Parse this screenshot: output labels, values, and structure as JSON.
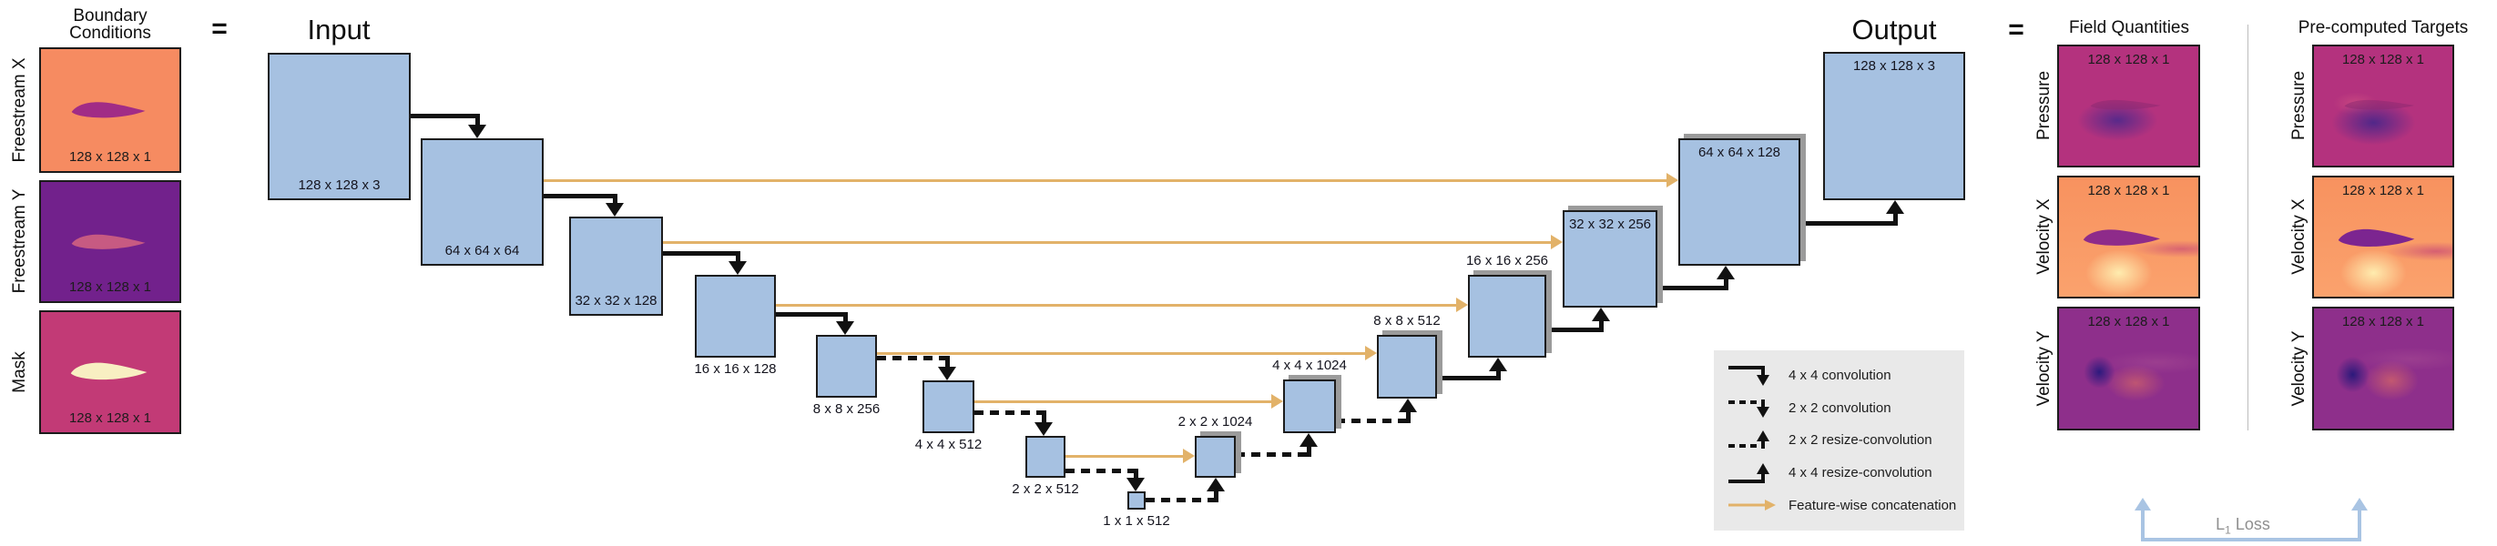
{
  "boundary": {
    "title_line1": "Boundary",
    "title_line2": "Conditions",
    "items": [
      {
        "label": "Freestream X",
        "dims": "128 x 128 x 1"
      },
      {
        "label": "Freestream Y",
        "dims": "128 x 128 x 1"
      },
      {
        "label": "Mask",
        "dims": "128 x 128 x 1"
      }
    ]
  },
  "equals_left": "=",
  "equals_right": "=",
  "unet": {
    "input_title": "Input",
    "output_title": "Output",
    "layers": [
      {
        "name": "input",
        "dims": "128 x 128 x 3"
      },
      {
        "name": "enc-64",
        "dims": "64 x 64 x 64"
      },
      {
        "name": "enc-32",
        "dims": "32 x 32 x 128"
      },
      {
        "name": "enc-16",
        "dims": "16 x 16 x 128"
      },
      {
        "name": "enc-8",
        "dims": "8 x 8 x 256"
      },
      {
        "name": "enc-4",
        "dims": "4 x 4 x 512"
      },
      {
        "name": "enc-2",
        "dims": "2 x 2 x 512"
      },
      {
        "name": "bottleneck",
        "dims": "1 x 1 x 512"
      },
      {
        "name": "dec-2",
        "dims": "2 x 2 x 1024"
      },
      {
        "name": "dec-4",
        "dims": "4 x 4 x 1024"
      },
      {
        "name": "dec-8",
        "dims": "8 x 8 x 512"
      },
      {
        "name": "dec-16",
        "dims": "16 x 16 x 256"
      },
      {
        "name": "dec-32",
        "dims": "32 x 32 x 256"
      },
      {
        "name": "dec-64",
        "dims": "64 x 64 x 128"
      },
      {
        "name": "output",
        "dims": "128 x 128 x 3"
      }
    ]
  },
  "legend": {
    "items": [
      {
        "label": "4 x 4 convolution"
      },
      {
        "label": "2 x 2 convolution"
      },
      {
        "label": "2 x 2 resize-convolution"
      },
      {
        "label": "4 x 4 resize-convolution"
      },
      {
        "label": "Feature-wise concatenation"
      }
    ]
  },
  "fields": {
    "title": "Field Quantities",
    "items": [
      {
        "label": "Pressure",
        "dims": "128 x 128 x 1"
      },
      {
        "label": "Velocity X",
        "dims": "128 x 128 x 1"
      },
      {
        "label": "Velocity Y",
        "dims": "128 x 128 x 1"
      }
    ]
  },
  "targets": {
    "title": "Pre-computed Targets",
    "items": [
      {
        "label": "Pressure",
        "dims": "128 x 128 x 1"
      },
      {
        "label": "Velocity X",
        "dims": "128 x 128 x 1"
      },
      {
        "label": "Velocity Y",
        "dims": "128 x 128 x 1"
      }
    ]
  },
  "loss": {
    "prefix": "L",
    "sub": "1",
    "word": "Loss"
  },
  "colors": {
    "box_blue": "#a6c1e1",
    "concat_orange": "#e2b269",
    "loss_blue": "#a9c4e3",
    "freestream_x_bg": "#f68b61",
    "freestream_y_bg": "#72218c",
    "mask_bg": "#c23a76",
    "pressure_bg": "#b4327e",
    "velocity_x_bg": "#f8925f",
    "velocity_y_bg": "#8e2f8b"
  }
}
